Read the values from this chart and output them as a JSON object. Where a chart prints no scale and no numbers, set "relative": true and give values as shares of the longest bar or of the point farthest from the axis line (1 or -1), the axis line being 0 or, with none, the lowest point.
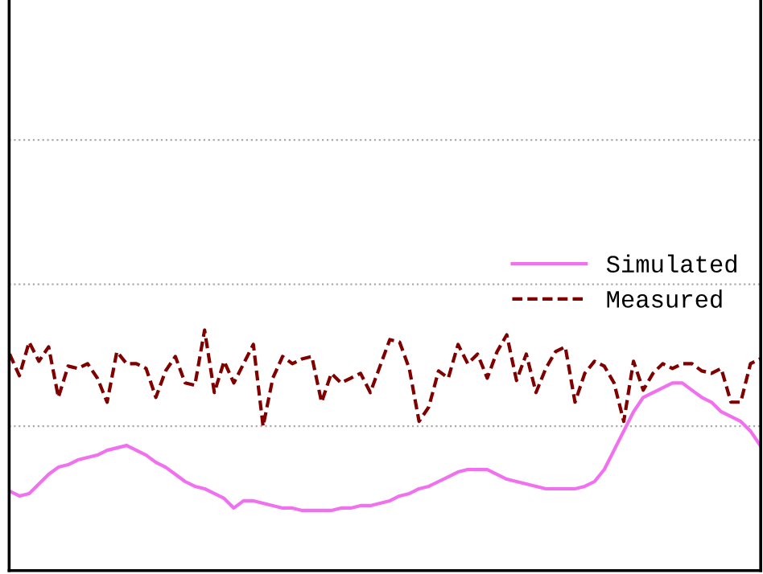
{
  "chart_data": {
    "type": "line",
    "relative": true,
    "legend": "right",
    "ref_lines": [
      {
        "axis": "y",
        "value": 0.6,
        "color": "#aaaaaa",
        "line_style": "dotted"
      },
      {
        "axis": "y",
        "value": 1.19,
        "color": "#aaaaaa",
        "line_style": "dotted"
      },
      {
        "axis": "y",
        "value": 1.79,
        "color": "#aaaaaa",
        "line_style": "dotted"
      }
    ],
    "marker": "none",
    "categories": [
      null,
      null,
      null,
      null,
      null,
      null,
      null,
      null,
      null,
      null,
      null,
      null,
      null,
      null,
      null,
      null,
      null,
      null,
      null,
      null,
      null,
      null,
      null,
      null,
      null,
      null,
      null,
      null,
      null,
      null,
      null,
      null,
      null,
      null,
      null,
      null,
      null,
      null,
      null,
      null,
      null,
      null,
      null,
      null,
      null,
      null,
      null,
      null,
      null,
      null,
      null,
      null,
      null,
      null,
      null,
      null,
      null,
      null,
      null,
      null,
      null,
      null,
      null,
      null,
      null,
      null,
      null,
      null,
      null,
      null,
      null,
      null,
      null,
      null,
      null,
      null,
      null,
      null
    ],
    "series": [
      {
        "name": "Simulated",
        "color": "#f070f0",
        "line_style": "solid",
        "values": [
          0.33,
          0.31,
          0.32,
          0.36,
          0.4,
          0.43,
          0.44,
          0.46,
          0.47,
          0.48,
          0.5,
          0.51,
          0.52,
          0.5,
          0.48,
          0.45,
          0.43,
          0.4,
          0.37,
          0.35,
          0.34,
          0.32,
          0.3,
          0.26,
          0.29,
          0.29,
          0.28,
          0.27,
          0.26,
          0.26,
          0.25,
          0.25,
          0.25,
          0.25,
          0.26,
          0.26,
          0.27,
          0.27,
          0.28,
          0.29,
          0.31,
          0.32,
          0.34,
          0.35,
          0.37,
          0.39,
          0.41,
          0.42,
          0.42,
          0.42,
          0.4,
          0.38,
          0.37,
          0.36,
          0.35,
          0.34,
          0.34,
          0.34,
          0.34,
          0.35,
          0.37,
          0.42,
          0.5,
          0.58,
          0.66,
          0.72,
          0.74,
          0.76,
          0.78,
          0.78,
          0.75,
          0.72,
          0.7,
          0.66,
          0.64,
          0.62,
          0.58,
          0.52
        ]
      },
      {
        "name": "Measured",
        "color": "#800000",
        "line_style": "dashed",
        "values": [
          0.9,
          0.81,
          0.95,
          0.87,
          0.93,
          0.72,
          0.85,
          0.84,
          0.86,
          0.8,
          0.7,
          0.91,
          0.86,
          0.86,
          0.84,
          0.72,
          0.83,
          0.89,
          0.78,
          0.77,
          1.0,
          0.74,
          0.87,
          0.78,
          0.86,
          0.94,
          0.6,
          0.8,
          0.89,
          0.86,
          0.88,
          0.89,
          0.7,
          0.82,
          0.78,
          0.8,
          0.82,
          0.74,
          0.85,
          0.96,
          0.95,
          0.84,
          0.62,
          0.68,
          0.83,
          0.8,
          0.94,
          0.86,
          0.9,
          0.8,
          0.91,
          0.98,
          0.79,
          0.9,
          0.74,
          0.84,
          0.91,
          0.93,
          0.7,
          0.82,
          0.87,
          0.85,
          0.78,
          0.62,
          0.87,
          0.75,
          0.82,
          0.86,
          0.84,
          0.86,
          0.86,
          0.83,
          0.82,
          0.84,
          0.7,
          0.7,
          0.86,
          0.88
        ]
      }
    ]
  }
}
